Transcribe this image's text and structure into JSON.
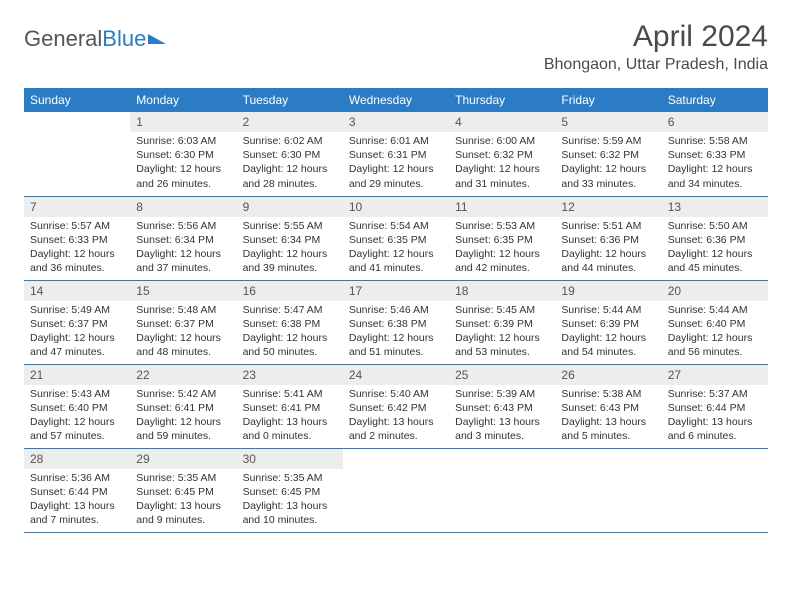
{
  "logo": {
    "part1": "General",
    "part2": "Blue"
  },
  "title": "April 2024",
  "location": "Bhongaon, Uttar Pradesh, India",
  "colors": {
    "header_bg": "#2b7cc4",
    "daynum_bg": "#eceded",
    "border": "#2b7cc4",
    "text": "#333333",
    "title_text": "#4a4a4a"
  },
  "fonts": {
    "title_size": 30,
    "location_size": 16,
    "header_size": 12,
    "daynum_size": 12,
    "info_size": 10.5
  },
  "headers": [
    "Sunday",
    "Monday",
    "Tuesday",
    "Wednesday",
    "Thursday",
    "Friday",
    "Saturday"
  ],
  "start_offset": 1,
  "days": [
    {
      "n": "1",
      "sr": "6:03 AM",
      "ss": "6:30 PM",
      "dl": "12 hours and 26 minutes."
    },
    {
      "n": "2",
      "sr": "6:02 AM",
      "ss": "6:30 PM",
      "dl": "12 hours and 28 minutes."
    },
    {
      "n": "3",
      "sr": "6:01 AM",
      "ss": "6:31 PM",
      "dl": "12 hours and 29 minutes."
    },
    {
      "n": "4",
      "sr": "6:00 AM",
      "ss": "6:32 PM",
      "dl": "12 hours and 31 minutes."
    },
    {
      "n": "5",
      "sr": "5:59 AM",
      "ss": "6:32 PM",
      "dl": "12 hours and 33 minutes."
    },
    {
      "n": "6",
      "sr": "5:58 AM",
      "ss": "6:33 PM",
      "dl": "12 hours and 34 minutes."
    },
    {
      "n": "7",
      "sr": "5:57 AM",
      "ss": "6:33 PM",
      "dl": "12 hours and 36 minutes."
    },
    {
      "n": "8",
      "sr": "5:56 AM",
      "ss": "6:34 PM",
      "dl": "12 hours and 37 minutes."
    },
    {
      "n": "9",
      "sr": "5:55 AM",
      "ss": "6:34 PM",
      "dl": "12 hours and 39 minutes."
    },
    {
      "n": "10",
      "sr": "5:54 AM",
      "ss": "6:35 PM",
      "dl": "12 hours and 41 minutes."
    },
    {
      "n": "11",
      "sr": "5:53 AM",
      "ss": "6:35 PM",
      "dl": "12 hours and 42 minutes."
    },
    {
      "n": "12",
      "sr": "5:51 AM",
      "ss": "6:36 PM",
      "dl": "12 hours and 44 minutes."
    },
    {
      "n": "13",
      "sr": "5:50 AM",
      "ss": "6:36 PM",
      "dl": "12 hours and 45 minutes."
    },
    {
      "n": "14",
      "sr": "5:49 AM",
      "ss": "6:37 PM",
      "dl": "12 hours and 47 minutes."
    },
    {
      "n": "15",
      "sr": "5:48 AM",
      "ss": "6:37 PM",
      "dl": "12 hours and 48 minutes."
    },
    {
      "n": "16",
      "sr": "5:47 AM",
      "ss": "6:38 PM",
      "dl": "12 hours and 50 minutes."
    },
    {
      "n": "17",
      "sr": "5:46 AM",
      "ss": "6:38 PM",
      "dl": "12 hours and 51 minutes."
    },
    {
      "n": "18",
      "sr": "5:45 AM",
      "ss": "6:39 PM",
      "dl": "12 hours and 53 minutes."
    },
    {
      "n": "19",
      "sr": "5:44 AM",
      "ss": "6:39 PM",
      "dl": "12 hours and 54 minutes."
    },
    {
      "n": "20",
      "sr": "5:44 AM",
      "ss": "6:40 PM",
      "dl": "12 hours and 56 minutes."
    },
    {
      "n": "21",
      "sr": "5:43 AM",
      "ss": "6:40 PM",
      "dl": "12 hours and 57 minutes."
    },
    {
      "n": "22",
      "sr": "5:42 AM",
      "ss": "6:41 PM",
      "dl": "12 hours and 59 minutes."
    },
    {
      "n": "23",
      "sr": "5:41 AM",
      "ss": "6:41 PM",
      "dl": "13 hours and 0 minutes."
    },
    {
      "n": "24",
      "sr": "5:40 AM",
      "ss": "6:42 PM",
      "dl": "13 hours and 2 minutes."
    },
    {
      "n": "25",
      "sr": "5:39 AM",
      "ss": "6:43 PM",
      "dl": "13 hours and 3 minutes."
    },
    {
      "n": "26",
      "sr": "5:38 AM",
      "ss": "6:43 PM",
      "dl": "13 hours and 5 minutes."
    },
    {
      "n": "27",
      "sr": "5:37 AM",
      "ss": "6:44 PM",
      "dl": "13 hours and 6 minutes."
    },
    {
      "n": "28",
      "sr": "5:36 AM",
      "ss": "6:44 PM",
      "dl": "13 hours and 7 minutes."
    },
    {
      "n": "29",
      "sr": "5:35 AM",
      "ss": "6:45 PM",
      "dl": "13 hours and 9 minutes."
    },
    {
      "n": "30",
      "sr": "5:35 AM",
      "ss": "6:45 PM",
      "dl": "13 hours and 10 minutes."
    }
  ],
  "labels": {
    "sunrise": "Sunrise: ",
    "sunset": "Sunset: ",
    "daylight": "Daylight: "
  }
}
